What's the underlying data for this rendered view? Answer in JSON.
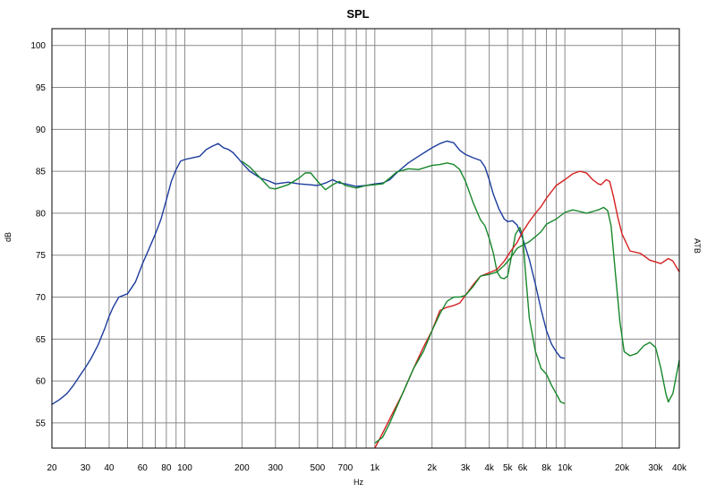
{
  "chart_data": {
    "type": "line",
    "title": "SPL",
    "xlabel": "Hz",
    "ylabel": "dB",
    "ylabel_right": "ATB",
    "x_scale": "log",
    "xlim": [
      20,
      40000
    ],
    "ylim": [
      52,
      102
    ],
    "grid": true,
    "x_ticks": [
      {
        "value": 20,
        "label": "20"
      },
      {
        "value": 30,
        "label": "30"
      },
      {
        "value": 40,
        "label": "40"
      },
      {
        "value": 60,
        "label": "60"
      },
      {
        "value": 80,
        "label": "80"
      },
      {
        "value": 100,
        "label": "100"
      },
      {
        "value": 200,
        "label": "200"
      },
      {
        "value": 300,
        "label": "300"
      },
      {
        "value": 500,
        "label": "500"
      },
      {
        "value": 700,
        "label": "700"
      },
      {
        "value": 1000,
        "label": "1k"
      },
      {
        "value": 2000,
        "label": "2k"
      },
      {
        "value": 3000,
        "label": "3k"
      },
      {
        "value": 4000,
        "label": "4k"
      },
      {
        "value": 5000,
        "label": "5k"
      },
      {
        "value": 6000,
        "label": "6k"
      },
      {
        "value": 8000,
        "label": "8k"
      },
      {
        "value": 10000,
        "label": "10k"
      },
      {
        "value": 20000,
        "label": "20k"
      },
      {
        "value": 30000,
        "label": "30k"
      },
      {
        "value": 40000,
        "label": "40k"
      }
    ],
    "x_minor_grid": [
      50,
      70,
      90,
      400,
      600,
      800,
      900,
      7000,
      9000
    ],
    "y_ticks": [
      55,
      60,
      65,
      70,
      75,
      80,
      85,
      90,
      95,
      100
    ],
    "series": [
      {
        "color": "#1c3c9c",
        "points": [
          [
            20,
            57.2
          ],
          [
            22,
            57.8
          ],
          [
            24,
            58.5
          ],
          [
            26,
            59.5
          ],
          [
            28,
            60.6
          ],
          [
            30,
            61.6
          ],
          [
            32,
            62.6
          ],
          [
            35,
            64.3
          ],
          [
            38,
            66.3
          ],
          [
            40,
            67.7
          ],
          [
            42,
            68.8
          ],
          [
            45,
            70.0
          ],
          [
            50,
            70.4
          ],
          [
            55,
            71.8
          ],
          [
            60,
            74.0
          ],
          [
            65,
            75.8
          ],
          [
            70,
            77.5
          ],
          [
            75,
            79.3
          ],
          [
            80,
            81.6
          ],
          [
            85,
            83.8
          ],
          [
            90,
            85.2
          ],
          [
            95,
            86.2
          ],
          [
            100,
            86.4
          ],
          [
            110,
            86.6
          ],
          [
            120,
            86.8
          ],
          [
            130,
            87.6
          ],
          [
            140,
            88.0
          ],
          [
            150,
            88.3
          ],
          [
            160,
            87.8
          ],
          [
            170,
            87.6
          ],
          [
            180,
            87.2
          ],
          [
            190,
            86.6
          ],
          [
            200,
            86.0
          ],
          [
            220,
            85.0
          ],
          [
            250,
            84.2
          ],
          [
            280,
            83.8
          ],
          [
            300,
            83.5
          ],
          [
            350,
            83.7
          ],
          [
            400,
            83.5
          ],
          [
            450,
            83.4
          ],
          [
            500,
            83.3
          ],
          [
            550,
            83.6
          ],
          [
            600,
            84.0
          ],
          [
            650,
            83.6
          ],
          [
            700,
            83.5
          ],
          [
            800,
            83.2
          ],
          [
            900,
            83.3
          ],
          [
            1000,
            83.5
          ],
          [
            1100,
            83.6
          ],
          [
            1200,
            84.0
          ],
          [
            1300,
            84.8
          ],
          [
            1500,
            86.0
          ],
          [
            1700,
            86.8
          ],
          [
            2000,
            87.8
          ],
          [
            2200,
            88.3
          ],
          [
            2400,
            88.6
          ],
          [
            2600,
            88.4
          ],
          [
            2800,
            87.5
          ],
          [
            3000,
            87.0
          ],
          [
            3300,
            86.6
          ],
          [
            3600,
            86.3
          ],
          [
            3800,
            85.5
          ],
          [
            4000,
            84.0
          ],
          [
            4200,
            82.3
          ],
          [
            4500,
            80.5
          ],
          [
            4800,
            79.3
          ],
          [
            5000,
            79.0
          ],
          [
            5300,
            79.1
          ],
          [
            5600,
            78.6
          ],
          [
            6000,
            77.0
          ],
          [
            6500,
            74.5
          ],
          [
            7000,
            71.5
          ],
          [
            7500,
            68.5
          ],
          [
            8000,
            66.0
          ],
          [
            8500,
            64.4
          ],
          [
            9000,
            63.5
          ],
          [
            9500,
            62.8
          ],
          [
            10000,
            62.7
          ]
        ]
      },
      {
        "color": "#17872a",
        "points": [
          [
            200,
            86.2
          ],
          [
            220,
            85.5
          ],
          [
            250,
            84.2
          ],
          [
            280,
            83.0
          ],
          [
            300,
            82.9
          ],
          [
            350,
            83.4
          ],
          [
            400,
            84.2
          ],
          [
            430,
            84.8
          ],
          [
            460,
            84.8
          ],
          [
            500,
            83.8
          ],
          [
            550,
            82.8
          ],
          [
            600,
            83.4
          ],
          [
            650,
            83.8
          ],
          [
            700,
            83.3
          ],
          [
            800,
            83.0
          ],
          [
            900,
            83.3
          ],
          [
            1000,
            83.4
          ],
          [
            1100,
            83.5
          ],
          [
            1200,
            84.2
          ],
          [
            1300,
            84.9
          ],
          [
            1500,
            85.3
          ],
          [
            1700,
            85.2
          ],
          [
            2000,
            85.7
          ],
          [
            2200,
            85.8
          ],
          [
            2400,
            86.0
          ],
          [
            2600,
            85.8
          ],
          [
            2800,
            85.2
          ],
          [
            3000,
            83.8
          ],
          [
            3300,
            81.2
          ],
          [
            3600,
            79.2
          ],
          [
            3800,
            78.5
          ],
          [
            4000,
            77.0
          ],
          [
            4200,
            75.3
          ],
          [
            4400,
            73.0
          ],
          [
            4600,
            72.3
          ],
          [
            4800,
            72.2
          ],
          [
            5000,
            72.5
          ],
          [
            5200,
            74.5
          ],
          [
            5500,
            77.5
          ],
          [
            5800,
            78.3
          ],
          [
            6000,
            77.3
          ],
          [
            6200,
            73.0
          ],
          [
            6500,
            67.5
          ],
          [
            7000,
            63.5
          ],
          [
            7500,
            61.5
          ],
          [
            8000,
            60.8
          ],
          [
            8500,
            59.5
          ],
          [
            9000,
            58.5
          ],
          [
            9500,
            57.5
          ],
          [
            10000,
            57.3
          ]
        ]
      },
      {
        "color": "#d42020",
        "points": [
          [
            1000,
            52.0
          ],
          [
            1100,
            53.8
          ],
          [
            1200,
            55.5
          ],
          [
            1400,
            58.5
          ],
          [
            1600,
            61.5
          ],
          [
            1800,
            64.0
          ],
          [
            2000,
            66.0
          ],
          [
            2200,
            68.4
          ],
          [
            2400,
            68.8
          ],
          [
            2600,
            69.0
          ],
          [
            2800,
            69.3
          ],
          [
            3000,
            70.2
          ],
          [
            3300,
            71.5
          ],
          [
            3600,
            72.5
          ],
          [
            4000,
            72.9
          ],
          [
            4400,
            73.3
          ],
          [
            4800,
            74.3
          ],
          [
            5200,
            75.5
          ],
          [
            5600,
            76.5
          ],
          [
            6000,
            77.8
          ],
          [
            6500,
            79.0
          ],
          [
            7000,
            80.0
          ],
          [
            7500,
            80.8
          ],
          [
            8000,
            81.8
          ],
          [
            9000,
            83.3
          ],
          [
            10000,
            84.0
          ],
          [
            11000,
            84.7
          ],
          [
            12000,
            85.0
          ],
          [
            13000,
            84.8
          ],
          [
            14000,
            84.0
          ],
          [
            15000,
            83.5
          ],
          [
            15500,
            83.4
          ],
          [
            16500,
            84.0
          ],
          [
            17200,
            83.8
          ],
          [
            18000,
            82.0
          ],
          [
            19000,
            79.5
          ],
          [
            20000,
            77.5
          ],
          [
            22000,
            75.5
          ],
          [
            25000,
            75.2
          ],
          [
            28000,
            74.4
          ],
          [
            32000,
            74.0
          ],
          [
            35000,
            74.6
          ],
          [
            37000,
            74.3
          ],
          [
            40000,
            73.0
          ]
        ]
      },
      {
        "color": "#17872a",
        "points": [
          [
            1000,
            52.6
          ],
          [
            1100,
            53.3
          ],
          [
            1200,
            55.0
          ],
          [
            1400,
            58.5
          ],
          [
            1600,
            61.5
          ],
          [
            1800,
            63.5
          ],
          [
            2000,
            66.0
          ],
          [
            2200,
            68.0
          ],
          [
            2400,
            69.5
          ],
          [
            2600,
            70.0
          ],
          [
            2800,
            70.0
          ],
          [
            3000,
            70.2
          ],
          [
            3300,
            71.3
          ],
          [
            3600,
            72.5
          ],
          [
            4000,
            72.7
          ],
          [
            4400,
            73.0
          ],
          [
            4800,
            73.8
          ],
          [
            5200,
            74.7
          ],
          [
            5600,
            75.8
          ],
          [
            6000,
            76.2
          ],
          [
            6500,
            76.6
          ],
          [
            7000,
            77.2
          ],
          [
            7500,
            77.8
          ],
          [
            8000,
            78.7
          ],
          [
            9000,
            79.3
          ],
          [
            10000,
            80.1
          ],
          [
            11000,
            80.4
          ],
          [
            12000,
            80.2
          ],
          [
            13000,
            80.0
          ],
          [
            14000,
            80.2
          ],
          [
            15000,
            80.4
          ],
          [
            16000,
            80.7
          ],
          [
            16800,
            80.3
          ],
          [
            17500,
            78.5
          ],
          [
            18500,
            72.5
          ],
          [
            19500,
            67.0
          ],
          [
            20500,
            63.5
          ],
          [
            22000,
            63.0
          ],
          [
            24000,
            63.3
          ],
          [
            26000,
            64.2
          ],
          [
            28000,
            64.6
          ],
          [
            30000,
            64.0
          ],
          [
            32000,
            61.5
          ],
          [
            34000,
            58.5
          ],
          [
            35000,
            57.5
          ],
          [
            37000,
            58.5
          ],
          [
            40000,
            62.5
          ]
        ]
      }
    ]
  }
}
